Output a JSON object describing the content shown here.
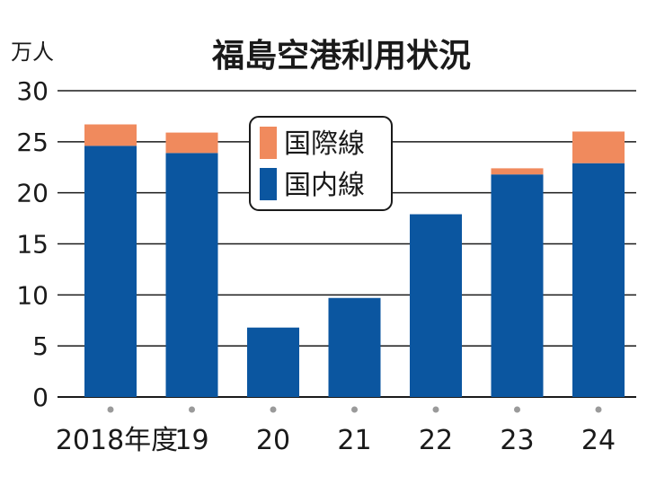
{
  "chart_data": {
    "type": "bar",
    "stacked": true,
    "title": "福島空港利用状況",
    "unit_label": "万人",
    "categories": [
      "2018年度",
      "19",
      "20",
      "21",
      "22",
      "23",
      "24"
    ],
    "series": [
      {
        "name": "国内線",
        "color": "#0b56a0",
        "values": [
          24.6,
          23.9,
          6.8,
          9.7,
          17.9,
          21.8,
          22.9
        ]
      },
      {
        "name": "国際線",
        "color": "#f08a5d",
        "values": [
          2.1,
          2.0,
          0,
          0,
          0,
          0.6,
          3.1
        ]
      }
    ],
    "ylim": [
      0,
      30
    ],
    "yticks": [
      "0",
      "5",
      "10",
      "15",
      "20",
      "25",
      "30"
    ],
    "grid": true,
    "legend_position": "top-center",
    "legend_order": [
      "国際線",
      "国内線"
    ]
  }
}
